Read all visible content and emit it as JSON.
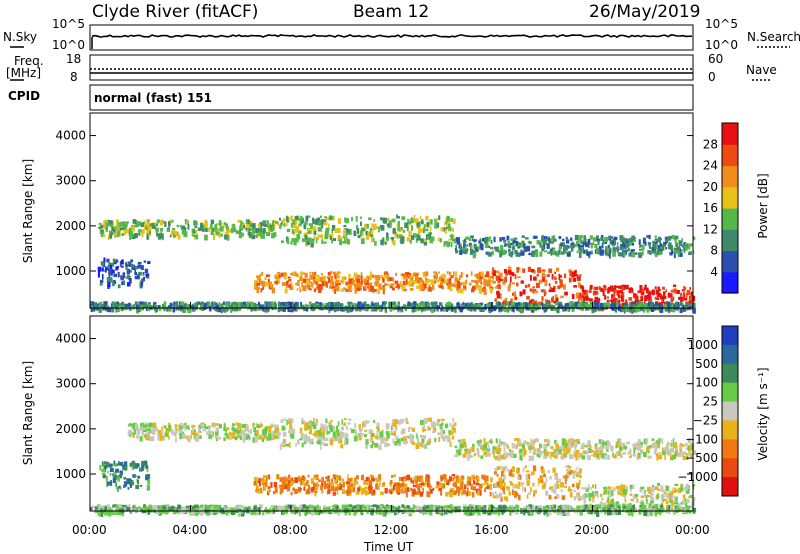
{
  "header": {
    "station": "Clyde River (fitACF)",
    "beam": "Beam 12",
    "date": "26/May/2019"
  },
  "nsky_panel": {
    "left_label": "N.Sky",
    "right_label": "N.Search",
    "left_ticks": [
      "10^5",
      "10^0"
    ],
    "right_ticks": [
      "10^5",
      "10^0"
    ]
  },
  "freq_panel": {
    "left_label_1": "Freq.",
    "left_label_2": "[MHz]",
    "right_label": "Nave",
    "left_ticks": [
      "18",
      "8"
    ],
    "right_ticks": [
      "60",
      "0"
    ]
  },
  "cpid_panel": {
    "label": "CPID",
    "value": "normal (fast) 151"
  },
  "x_axis": {
    "label": "Time UT",
    "ticks": [
      "00:00",
      "04:00",
      "08:00",
      "12:00",
      "16:00",
      "20:00",
      "00:00"
    ]
  },
  "chart_data": [
    {
      "type": "heatmap",
      "ylabel": "Slant Range [km]",
      "y_ticks": [
        "1000",
        "2000",
        "3000",
        "4000"
      ],
      "ylim": [
        180,
        4500
      ],
      "xlim_hours": [
        0,
        24
      ],
      "colorbar": {
        "label": "Power [dB]",
        "ticks": [
          "4",
          "8",
          "12",
          "16",
          "20",
          "24",
          "28"
        ],
        "colors": [
          "#1a1aff",
          "#2a4fae",
          "#3e8a6a",
          "#55b84a",
          "#e8c21a",
          "#f28c1a",
          "#ee4a12",
          "#e81010"
        ]
      },
      "bands": [
        {
          "t0": 0.3,
          "t1": 7.5,
          "r0": 1800,
          "r1": 2150,
          "level": 3
        },
        {
          "t0": 7.5,
          "t1": 14.5,
          "r0": 1650,
          "r1": 2250,
          "level": 3
        },
        {
          "t0": 14.5,
          "t1": 24,
          "r0": 1400,
          "r1": 1800,
          "level": 2
        },
        {
          "t0": 6.5,
          "t1": 16,
          "r0": 600,
          "r1": 1000,
          "level": 5
        },
        {
          "t0": 16,
          "t1": 19.5,
          "r0": 300,
          "r1": 1100,
          "level": 6
        },
        {
          "t0": 19.5,
          "t1": 24,
          "r0": 220,
          "r1": 700,
          "level": 7
        },
        {
          "t0": 0.3,
          "t1": 2.3,
          "r0": 700,
          "r1": 1300,
          "level": 1
        },
        {
          "t0": 0,
          "t1": 24,
          "r0": 180,
          "r1": 330,
          "level": 2
        }
      ]
    },
    {
      "type": "heatmap",
      "ylabel": "Slant Range [km]",
      "y_ticks": [
        "1000",
        "2000",
        "3000",
        "4000"
      ],
      "ylim": [
        180,
        4500
      ],
      "xlim_hours": [
        0,
        24
      ],
      "colorbar": {
        "label": "Velocity [m s⁻¹]",
        "ticks": [
          "1000",
          "500",
          "100",
          "25",
          "−25",
          "−100",
          "−500",
          "−1000"
        ],
        "colors": [
          "#1f3fbf",
          "#2a6a9a",
          "#3e8a5a",
          "#66cc44",
          "#c8c8c0",
          "#e8b21a",
          "#ef7a14",
          "#e84a12",
          "#e01010"
        ]
      },
      "bands": [
        {
          "t0": 1.5,
          "t1": 7.5,
          "r0": 1800,
          "r1": 2150,
          "level": 4
        },
        {
          "t0": 7.5,
          "t1": 14.5,
          "r0": 1650,
          "r1": 2250,
          "level": 4
        },
        {
          "t0": 14.5,
          "t1": 24,
          "r0": 1400,
          "r1": 1800,
          "level": 4
        },
        {
          "t0": 6.5,
          "t1": 16,
          "r0": 600,
          "r1": 1000,
          "level": 6
        },
        {
          "t0": 16,
          "t1": 19.5,
          "r0": 500,
          "r1": 1200,
          "level": 5
        },
        {
          "t0": 19.5,
          "t1": 24,
          "r0": 300,
          "r1": 800,
          "level": 4
        },
        {
          "t0": 0.3,
          "t1": 2.3,
          "r0": 700,
          "r1": 1300,
          "level": 2
        },
        {
          "t0": 0,
          "t1": 24,
          "r0": 180,
          "r1": 330,
          "level": 3
        }
      ]
    }
  ]
}
